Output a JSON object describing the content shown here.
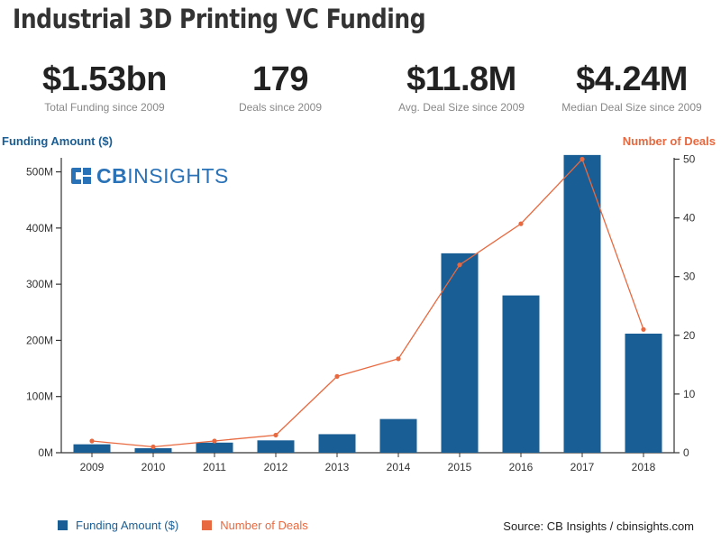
{
  "title": "Industrial 3D Printing VC Funding",
  "kpis": [
    {
      "value": "$1.53bn",
      "label": "Total Funding since 2009"
    },
    {
      "value": "179",
      "label": "Deals since 2009"
    },
    {
      "value": "$11.8M",
      "label": "Avg. Deal Size since 2009"
    },
    {
      "value": "$4.24M",
      "label": "Median Deal Size since 2009"
    }
  ],
  "logo": {
    "bold": "CB",
    "rest": "INSIGHTS"
  },
  "source": "Source: CB Insights / cbinsights.com",
  "colors": {
    "bar": "#1a5e96",
    "line": "#e8693f"
  },
  "chart_data": {
    "type": "bar",
    "title": "Industrial 3D Printing VC Funding",
    "categories": [
      "2009",
      "2010",
      "2011",
      "2012",
      "2013",
      "2014",
      "2015",
      "2016",
      "2017",
      "2018"
    ],
    "series": [
      {
        "name": "Funding Amount ($)",
        "type": "bar",
        "axis": "left",
        "unit": "M",
        "values": [
          15,
          8,
          18,
          22,
          33,
          60,
          355,
          280,
          530,
          212
        ]
      },
      {
        "name": "Number of Deals",
        "type": "line",
        "axis": "right",
        "values": [
          2,
          1,
          2,
          3,
          13,
          16,
          32,
          39,
          50,
          21
        ]
      }
    ],
    "ylabel": "Funding Amount ($)",
    "y2label": "Number of Deals",
    "ylim": [
      0,
      533
    ],
    "y2lim": [
      0,
      51
    ],
    "yticks": [
      "0M",
      "100M",
      "200M",
      "300M",
      "400M",
      "500M"
    ],
    "y2ticks": [
      "0",
      "10",
      "20",
      "30",
      "40",
      "50"
    ],
    "legend_position": "bottom-left"
  }
}
